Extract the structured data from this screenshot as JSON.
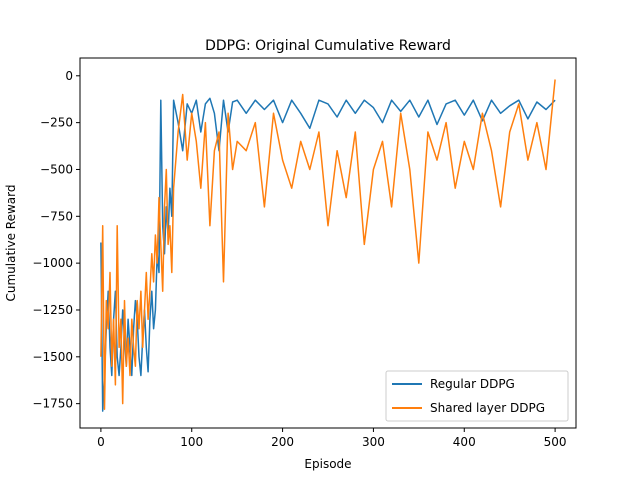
{
  "chart_data": {
    "type": "line",
    "title": "DDPG: Original Cumulative Reward",
    "xlabel": "Episode",
    "ylabel": "Cumulative Reward",
    "xlim": [
      -23,
      523
    ],
    "ylim": [
      -1880,
      95
    ],
    "x_ticks": [
      0,
      100,
      200,
      300,
      400,
      500
    ],
    "y_ticks": [
      -1750,
      -1500,
      -1250,
      -1000,
      -750,
      -500,
      -250,
      0
    ],
    "grid": false,
    "legend_position": "lower-right",
    "series": [
      {
        "name": "Regular DDPG",
        "color": "#1f77b4",
        "x": [
          0,
          2,
          4,
          6,
          8,
          10,
          12,
          14,
          16,
          18,
          20,
          22,
          24,
          26,
          28,
          30,
          32,
          34,
          36,
          38,
          40,
          42,
          44,
          46,
          48,
          50,
          52,
          54,
          56,
          58,
          60,
          62,
          64,
          66,
          68,
          70,
          72,
          74,
          76,
          78,
          80,
          85,
          90,
          95,
          100,
          105,
          110,
          115,
          120,
          125,
          130,
          135,
          140,
          145,
          150,
          160,
          170,
          180,
          190,
          200,
          210,
          220,
          230,
          240,
          250,
          260,
          270,
          280,
          290,
          300,
          310,
          320,
          330,
          340,
          350,
          360,
          370,
          380,
          390,
          400,
          410,
          420,
          430,
          440,
          450,
          460,
          470,
          480,
          490,
          500
        ],
        "y": [
          -890,
          -1790,
          -1600,
          -1350,
          -1150,
          -1450,
          -1600,
          -1300,
          -1150,
          -1500,
          -1600,
          -1450,
          -1250,
          -1400,
          -1550,
          -1300,
          -1450,
          -1600,
          -1350,
          -1200,
          -1300,
          -1500,
          -1600,
          -1400,
          -1250,
          -1450,
          -1580,
          -1300,
          -1150,
          -1350,
          -1250,
          -950,
          -1050,
          -130,
          -800,
          -950,
          -700,
          -850,
          -600,
          -750,
          -130,
          -250,
          -400,
          -150,
          -200,
          -130,
          -300,
          -150,
          -120,
          -200,
          -400,
          -130,
          -300,
          -140,
          -130,
          -200,
          -130,
          -180,
          -130,
          -250,
          -130,
          -200,
          -280,
          -130,
          -150,
          -220,
          -130,
          -200,
          -130,
          -170,
          -250,
          -130,
          -190,
          -130,
          -220,
          -130,
          -260,
          -150,
          -130,
          -210,
          -130,
          -240,
          -130,
          -200,
          -160,
          -130,
          -230,
          -140,
          -180,
          -130
        ]
      },
      {
        "name": "Shared layer DDPG",
        "color": "#ff7f0e",
        "x": [
          0,
          2,
          4,
          6,
          8,
          10,
          12,
          14,
          16,
          18,
          20,
          22,
          24,
          26,
          28,
          30,
          32,
          34,
          36,
          38,
          40,
          42,
          44,
          46,
          48,
          50,
          52,
          54,
          56,
          58,
          60,
          62,
          64,
          66,
          68,
          70,
          72,
          74,
          76,
          78,
          80,
          85,
          90,
          95,
          100,
          105,
          110,
          115,
          120,
          125,
          130,
          135,
          140,
          145,
          150,
          160,
          170,
          180,
          190,
          200,
          210,
          220,
          230,
          240,
          250,
          260,
          270,
          280,
          290,
          300,
          310,
          320,
          330,
          340,
          350,
          360,
          370,
          380,
          390,
          400,
          410,
          420,
          430,
          440,
          450,
          460,
          470,
          480,
          490,
          500
        ],
        "y": [
          -1500,
          -800,
          -1780,
          -1200,
          -1350,
          -1050,
          -1550,
          -1300,
          -1650,
          -800,
          -1450,
          -1300,
          -1750,
          -1200,
          -1550,
          -1400,
          -1600,
          -1300,
          -1450,
          -1550,
          -1200,
          -1350,
          -1150,
          -1450,
          -1250,
          -1050,
          -1300,
          -1150,
          -950,
          -1100,
          -850,
          -1000,
          -650,
          -900,
          -1150,
          -700,
          -500,
          -900,
          -800,
          -1050,
          -600,
          -300,
          -100,
          -450,
          -200,
          -350,
          -600,
          -250,
          -800,
          -400,
          -300,
          -1100,
          -200,
          -500,
          -350,
          -400,
          -250,
          -700,
          -200,
          -450,
          -600,
          -350,
          -500,
          -300,
          -800,
          -400,
          -650,
          -300,
          -900,
          -500,
          -350,
          -700,
          -200,
          -500,
          -1000,
          -300,
          -450,
          -250,
          -600,
          -350,
          -500,
          -200,
          -400,
          -700,
          -300,
          -150,
          -450,
          -250,
          -500,
          -20
        ]
      }
    ]
  }
}
